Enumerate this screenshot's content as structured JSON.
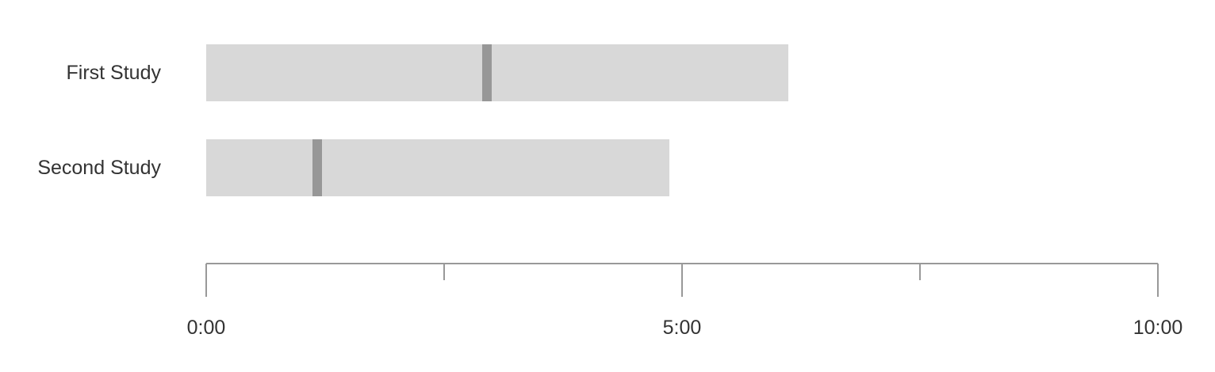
{
  "chart_data": {
    "type": "bar",
    "orientation": "horizontal",
    "categories": [
      "First Study",
      "Second Study"
    ],
    "values": [
      367,
      292
    ],
    "markers": [
      177,
      70
    ],
    "x_unit": "seconds",
    "xlim": [
      0,
      600
    ],
    "x_ticks": [
      0,
      150,
      300,
      450,
      600
    ],
    "x_tick_labels": [
      "0:00",
      "",
      "5:00",
      "",
      "10:00"
    ],
    "title": "",
    "xlabel": "",
    "ylabel": "",
    "grid": false,
    "legend": "none",
    "colors": {
      "bar": "#d8d8d8",
      "marker": "#979797",
      "axis": "#999999",
      "text": "#333333"
    }
  }
}
